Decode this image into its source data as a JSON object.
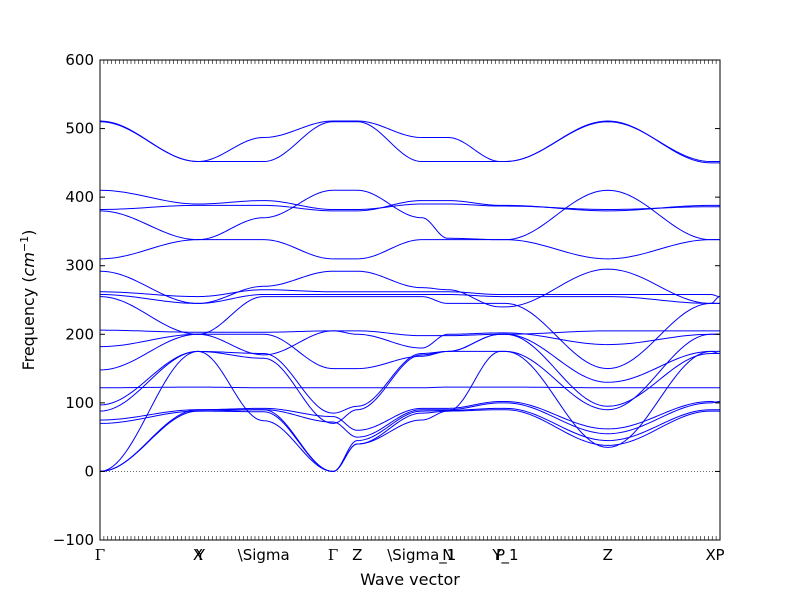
{
  "chart_data": {
    "type": "line",
    "title": "",
    "xlabel": "Wave vector",
    "ylabel": "Frequency ($cm^{-1}$)",
    "ylabel_parts": {
      "prefix": "Frequency (",
      "unit_base": "cm",
      "unit_exp": "−1",
      "suffix": ")"
    },
    "ylim": [
      -100,
      600
    ],
    "yticks": [
      -100,
      0,
      100,
      200,
      300,
      400,
      500,
      600
    ],
    "xlim": [
      0,
      1
    ],
    "xticks": [
      {
        "pos": 0.0,
        "label": "Γ"
      },
      {
        "pos": 0.158,
        "label": "X"
      },
      {
        "pos": 0.162,
        "label": "Y"
      },
      {
        "pos": 0.264,
        "label": "\\Sigma"
      },
      {
        "pos": 0.376,
        "label": "Γ"
      },
      {
        "pos": 0.415,
        "label": "Z"
      },
      {
        "pos": 0.519,
        "label": "\\Sigma_1"
      },
      {
        "pos": 0.561,
        "label": "N"
      },
      {
        "pos": 0.646,
        "label": "P"
      },
      {
        "pos": 0.654,
        "label": "Y_1"
      },
      {
        "pos": 0.819,
        "label": "Z"
      },
      {
        "pos": 0.985,
        "label": "X"
      },
      {
        "pos": 1.0,
        "label": "P"
      }
    ],
    "zero_line": {
      "y": 0,
      "style": "dotted",
      "color": "#555555"
    },
    "line_color": "#0000ff",
    "series": [
      {
        "x": [
          0,
          0.158,
          0.264,
          0.376,
          0.415,
          0.519,
          0.561,
          0.646,
          0.654,
          0.819,
          0.985,
          1.0
        ],
        "y": [
          0,
          88,
          87,
          0,
          40,
          85,
          88,
          90,
          90,
          38,
          88,
          88
        ]
      },
      {
        "x": [
          0,
          0.158,
          0.264,
          0.376,
          0.415,
          0.519,
          0.561,
          0.646,
          0.654,
          0.819,
          0.985,
          1.0
        ],
        "y": [
          0,
          90,
          90,
          0,
          45,
          88,
          89,
          92,
          92,
          45,
          90,
          90
        ]
      },
      {
        "x": [
          0,
          0.158,
          0.264,
          0.376,
          0.415,
          0.519,
          0.561,
          0.646,
          0.654,
          0.819,
          0.985,
          1.0
        ],
        "y": [
          0,
          175,
          74,
          0,
          40,
          75,
          88,
          175,
          175,
          35,
          175,
          175
        ]
      },
      {
        "x": [
          0,
          0.158,
          0.264,
          0.376,
          0.415,
          0.519,
          0.561,
          0.646,
          0.654,
          0.819,
          0.985,
          1.0
        ],
        "y": [
          70,
          88,
          90,
          72,
          50,
          90,
          90,
          100,
          100,
          55,
          100,
          102
        ]
      },
      {
        "x": [
          0,
          0.158,
          0.264,
          0.376,
          0.415,
          0.519,
          0.561,
          0.646,
          0.654,
          0.819,
          0.985,
          1.0
        ],
        "y": [
          75,
          90,
          92,
          80,
          60,
          92,
          92,
          102,
          102,
          62,
          102,
          100
        ]
      },
      {
        "x": [
          0,
          0.158,
          0.264,
          0.376,
          0.415,
          0.519,
          0.561,
          0.646,
          0.654,
          0.819,
          0.985,
          1.0
        ],
        "y": [
          88,
          175,
          165,
          70,
          90,
          170,
          175,
          175,
          175,
          90,
          200,
          200
        ]
      },
      {
        "x": [
          0,
          0.158,
          0.264,
          0.376,
          0.415,
          0.519,
          0.561,
          0.646,
          0.654,
          0.819,
          0.985,
          1.0
        ],
        "y": [
          97,
          175,
          172,
          85,
          95,
          172,
          175,
          200,
          200,
          95,
          172,
          172
        ]
      },
      {
        "x": [
          0,
          0.158,
          0.264,
          0.376,
          0.415,
          0.519,
          0.561,
          0.646,
          0.654,
          0.819,
          0.985,
          1.0
        ],
        "y": [
          122,
          123,
          122,
          122,
          122,
          122,
          123,
          123,
          123,
          122,
          122,
          122
        ]
      },
      {
        "x": [
          0,
          0.158,
          0.264,
          0.376,
          0.415,
          0.519,
          0.561,
          0.646,
          0.654,
          0.819,
          0.985,
          1.0
        ],
        "y": [
          148,
          200,
          200,
          150,
          150,
          168,
          175,
          200,
          200,
          130,
          175,
          172
        ]
      },
      {
        "x": [
          0,
          0.158,
          0.264,
          0.376,
          0.415,
          0.519,
          0.561,
          0.646,
          0.654,
          0.819,
          0.985,
          1.0
        ],
        "y": [
          182,
          200,
          170,
          205,
          200,
          180,
          200,
          202,
          202,
          185,
          200,
          200
        ]
      },
      {
        "x": [
          0,
          0.158,
          0.264,
          0.376,
          0.415,
          0.519,
          0.561,
          0.646,
          0.654,
          0.819,
          0.985,
          1.0
        ],
        "y": [
          206,
          203,
          203,
          205,
          205,
          198,
          198,
          200,
          200,
          205,
          205,
          205
        ]
      },
      {
        "x": [
          0,
          0.158,
          0.264,
          0.376,
          0.415,
          0.519,
          0.561,
          0.646,
          0.654,
          0.819,
          0.985,
          1.0
        ],
        "y": [
          255,
          200,
          255,
          255,
          255,
          255,
          245,
          245,
          245,
          150,
          245,
          245
        ]
      },
      {
        "x": [
          0,
          0.158,
          0.264,
          0.376,
          0.415,
          0.519,
          0.561,
          0.646,
          0.654,
          0.819,
          0.985,
          1.0
        ],
        "y": [
          258,
          245,
          258,
          258,
          258,
          258,
          258,
          255,
          255,
          255,
          245,
          255
        ]
      },
      {
        "x": [
          0,
          0.158,
          0.264,
          0.376,
          0.415,
          0.519,
          0.561,
          0.646,
          0.654,
          0.819,
          0.985,
          1.0
        ],
        "y": [
          262,
          255,
          265,
          262,
          262,
          262,
          262,
          258,
          258,
          258,
          258,
          255
        ]
      },
      {
        "x": [
          0,
          0.158,
          0.264,
          0.376,
          0.415,
          0.519,
          0.561,
          0.646,
          0.654,
          0.819,
          0.985,
          1.0
        ],
        "y": [
          292,
          245,
          270,
          292,
          292,
          268,
          265,
          240,
          240,
          295,
          245,
          245
        ]
      },
      {
        "x": [
          0,
          0.158,
          0.264,
          0.376,
          0.415,
          0.519,
          0.561,
          0.646,
          0.654,
          0.819,
          0.985,
          1.0
        ],
        "y": [
          310,
          338,
          338,
          310,
          310,
          338,
          338,
          338,
          338,
          310,
          338,
          338
        ]
      },
      {
        "x": [
          0,
          0.158,
          0.264,
          0.376,
          0.415,
          0.519,
          0.561,
          0.646,
          0.654,
          0.819,
          0.985,
          1.0
        ],
        "y": [
          380,
          338,
          370,
          410,
          410,
          370,
          340,
          338,
          338,
          410,
          338,
          338
        ]
      },
      {
        "x": [
          0,
          0.158,
          0.264,
          0.376,
          0.415,
          0.519,
          0.561,
          0.646,
          0.654,
          0.819,
          0.985,
          1.0
        ],
        "y": [
          382,
          388,
          388,
          380,
          380,
          395,
          395,
          388,
          388,
          380,
          388,
          388
        ]
      },
      {
        "x": [
          0,
          0.158,
          0.264,
          0.376,
          0.415,
          0.519,
          0.561,
          0.646,
          0.654,
          0.819,
          0.985,
          1.0
        ],
        "y": [
          410,
          390,
          395,
          382,
          382,
          390,
          390,
          387,
          387,
          382,
          386,
          386
        ]
      },
      {
        "x": [
          0,
          0.158,
          0.264,
          0.376,
          0.415,
          0.519,
          0.561,
          0.646,
          0.654,
          0.819,
          0.985,
          1.0
        ],
        "y": [
          510,
          452,
          452,
          510,
          510,
          452,
          452,
          452,
          452,
          510,
          452,
          452
        ]
      },
      {
        "x": [
          0,
          0.158,
          0.264,
          0.376,
          0.415,
          0.519,
          0.561,
          0.646,
          0.654,
          0.819,
          0.985,
          1.0
        ],
        "y": [
          511,
          452,
          487,
          511,
          511,
          487,
          487,
          452,
          452,
          511,
          450,
          450
        ]
      }
    ]
  }
}
